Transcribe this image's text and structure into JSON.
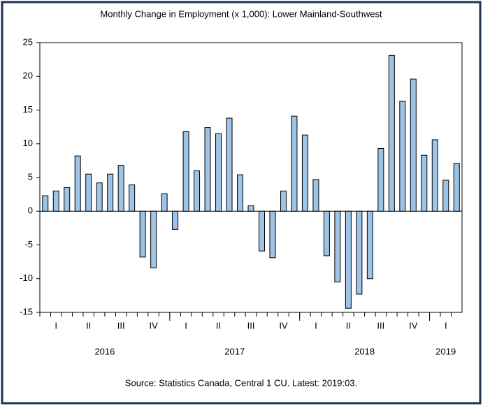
{
  "chart_data": {
    "type": "bar",
    "title": "Monthly Change in Employment (x 1,000): Lower Mainland-Southwest",
    "source": "Source: Statistics Canada, Central 1 CU. Latest: 2019:03.",
    "categories": [
      null,
      "I",
      null,
      null,
      "II",
      null,
      null,
      "III",
      null,
      null,
      "IV",
      null,
      null,
      "I",
      null,
      null,
      "II",
      null,
      null,
      "III",
      null,
      null,
      "IV",
      null,
      null,
      "I",
      null,
      null,
      "II",
      null,
      null,
      "III",
      null,
      null,
      "IV",
      null,
      null,
      "I",
      null
    ],
    "years": [
      "2016",
      "2017",
      "2018",
      "2019"
    ],
    "values": [
      2.3,
      3.0,
      3.5,
      8.2,
      5.5,
      4.2,
      5.5,
      6.8,
      3.9,
      -6.8,
      -8.4,
      2.6,
      -2.7,
      11.8,
      6.0,
      12.4,
      11.5,
      13.8,
      5.4,
      0.8,
      -5.9,
      -6.9,
      3.0,
      14.1,
      11.3,
      4.7,
      -6.6,
      -10.5,
      -14.4,
      -12.3,
      -10.0,
      9.3,
      23.1,
      16.3,
      19.6,
      8.3,
      10.6,
      4.6,
      7.1
    ],
    "color": "#9dc3e6",
    "ylim": [
      -15,
      25
    ],
    "yticks": [
      -15,
      -10,
      -5,
      0,
      5,
      10,
      15,
      20,
      25
    ]
  }
}
